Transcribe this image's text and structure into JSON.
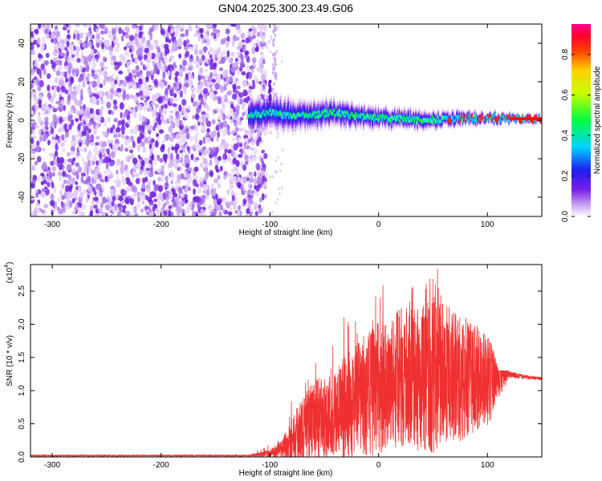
{
  "title": "GN04.2025.300.23.49.G06",
  "chart_data": [
    {
      "type": "heatmap",
      "name": "spectrogram",
      "xlabel": "Height of straight line (km)",
      "ylabel": "Frequency (Hz)",
      "xlim": [
        -320,
        150
      ],
      "ylim": [
        -50,
        50
      ],
      "xticks": [
        -300,
        -200,
        -100,
        0,
        100
      ],
      "xtick_labels": [
        "-300",
        "-200",
        "-100",
        "0",
        "100"
      ],
      "yticks": [
        -40,
        -20,
        0,
        20,
        40
      ],
      "ytick_labels": [
        "-40",
        "-20",
        "0",
        "20",
        "40"
      ],
      "colorbar": {
        "label": "Normalized spectral amplitude",
        "range": [
          0,
          0.95
        ],
        "ticks": [
          0.0,
          0.2,
          0.4,
          0.6,
          0.8
        ],
        "tick_labels": [
          "0.0",
          "0.2",
          "0.4",
          "0.6",
          "0.8"
        ]
      },
      "features": {
        "noise_region_x": [
          -320,
          -108
        ],
        "signal_band_x": [
          -120,
          150
        ],
        "signal_center_freq_hz": [
          [
            -120,
            3
          ],
          [
            -100,
            4
          ],
          [
            -80,
            2
          ],
          [
            -60,
            3
          ],
          [
            -40,
            4
          ],
          [
            -20,
            2
          ],
          [
            0,
            1
          ],
          [
            20,
            0.5
          ],
          [
            40,
            0.3
          ],
          [
            60,
            0.5
          ],
          [
            80,
            1
          ],
          [
            100,
            1
          ],
          [
            120,
            1
          ],
          [
            140,
            0.5
          ]
        ],
        "signal_halfwidth_hz": [
          [
            -120,
            9
          ],
          [
            -100,
            9
          ],
          [
            -60,
            7
          ],
          [
            -20,
            6
          ],
          [
            20,
            5
          ],
          [
            60,
            4
          ],
          [
            100,
            3
          ],
          [
            140,
            2
          ]
        ]
      }
    },
    {
      "type": "line",
      "name": "snr",
      "xlabel": "Height of straight line (km)",
      "ylabel": "SNR (10 * v/v)",
      "multiplier": "(x10",
      "multiplier_exp": "4",
      "multiplier_close": ")",
      "xlim": [
        -320,
        150
      ],
      "ylim": [
        0,
        2.9
      ],
      "xticks": [
        -300,
        -200,
        -100,
        0,
        100
      ],
      "xtick_labels": [
        "-300",
        "-200",
        "-100",
        "0",
        "100"
      ],
      "yticks": [
        0.0,
        0.5,
        1.0,
        1.5,
        2.0,
        2.5
      ],
      "ytick_labels": [
        "0.0",
        "0.5",
        "1.0",
        "1.5",
        "2.0",
        "2.5"
      ],
      "color": "#f03030",
      "envelope": {
        "x": [
          -320,
          -120,
          -100,
          -90,
          -80,
          -70,
          -60,
          -50,
          -40,
          -30,
          -20,
          -10,
          0,
          10,
          20,
          30,
          40,
          50,
          60,
          70,
          80,
          90,
          100,
          110,
          120,
          130,
          140,
          150
        ],
        "mid": [
          0.02,
          0.02,
          0.05,
          0.12,
          0.25,
          0.4,
          0.55,
          0.6,
          0.62,
          0.75,
          0.85,
          0.95,
          1.05,
          1.1,
          1.2,
          1.2,
          1.15,
          1.25,
          1.3,
          1.2,
          1.15,
          1.2,
          1.15,
          1.2,
          1.25,
          1.22,
          1.2,
          1.18
        ],
        "amp": [
          0.01,
          0.01,
          0.06,
          0.15,
          0.35,
          0.5,
          0.6,
          0.65,
          0.7,
          0.8,
          0.85,
          0.95,
          1.0,
          1.0,
          1.05,
          1.05,
          1.1,
          1.2,
          1.1,
          1.0,
          0.9,
          0.8,
          0.7,
          0.4,
          0.05,
          0.04,
          0.03,
          0.03
        ],
        "peak": [
          0.03,
          0.03,
          0.2,
          0.4,
          0.9,
          1.2,
          1.4,
          1.6,
          1.85,
          2.3,
          2.4,
          2.55,
          2.6,
          2.7,
          2.75,
          2.7,
          2.6,
          2.9,
          2.8,
          2.5,
          2.35,
          2.2,
          2.0,
          1.3,
          1.3,
          1.25,
          1.22,
          1.2
        ]
      }
    }
  ]
}
